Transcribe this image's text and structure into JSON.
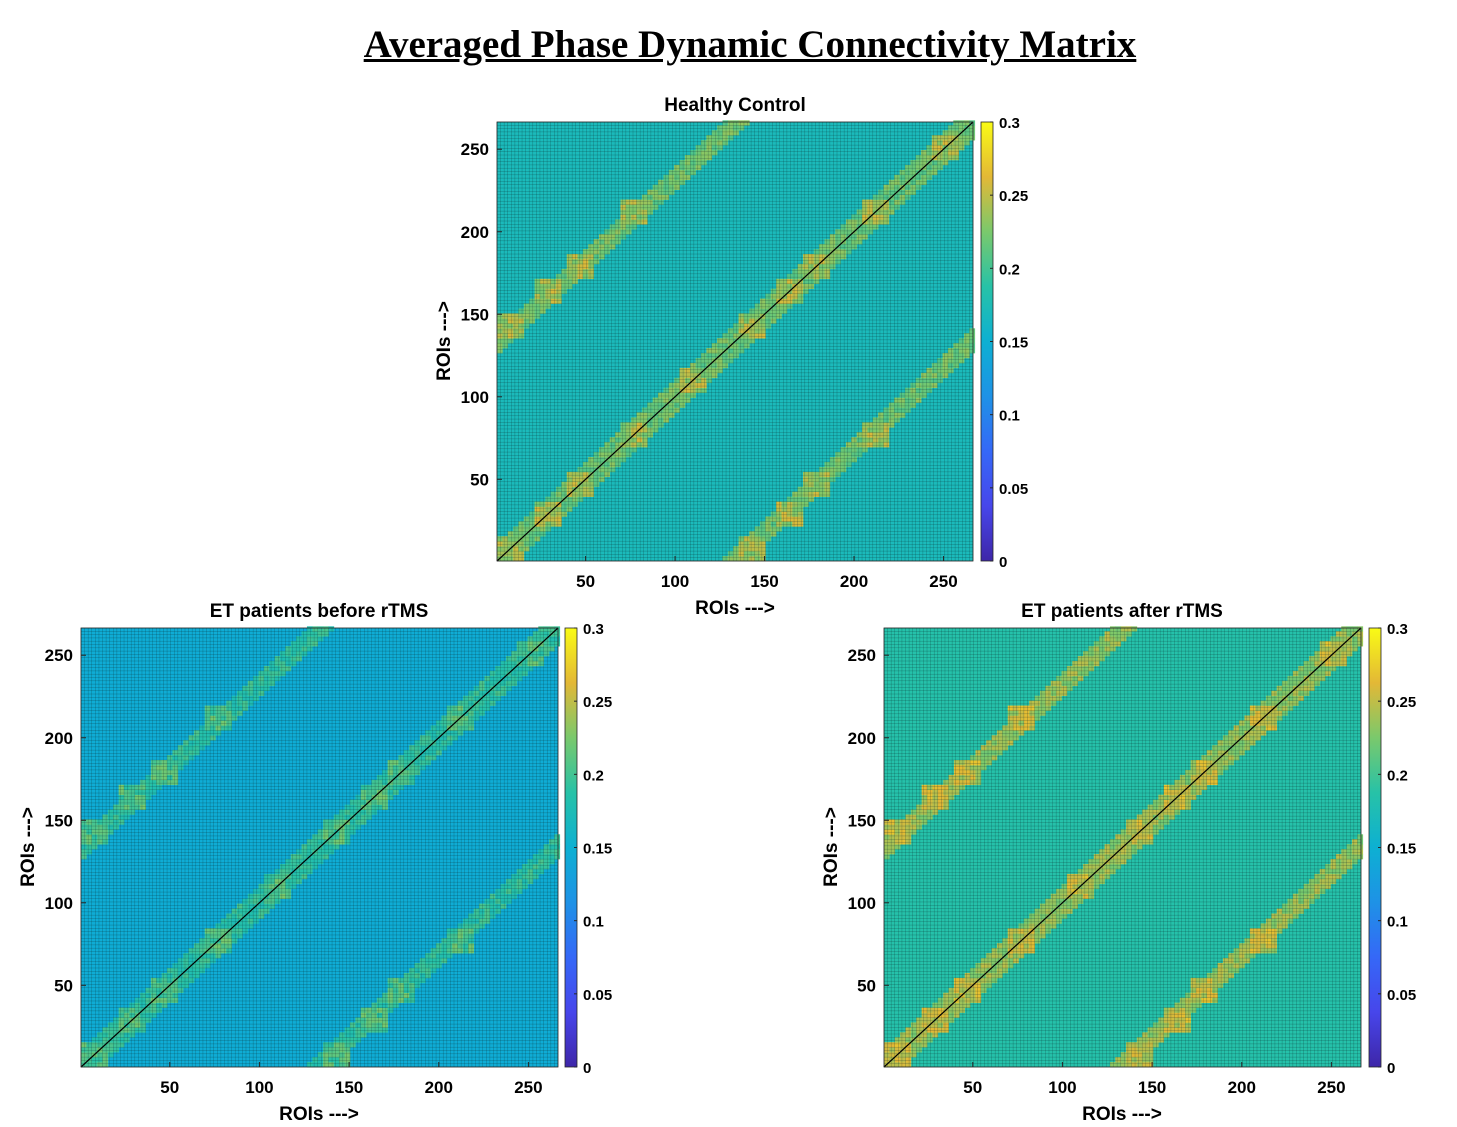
{
  "figure_title": "Averaged Phase Dynamic Connectivity Matrix",
  "colors": {
    "colormap": "parula",
    "diagonal": "#000000",
    "gridline": "#0a2a2a"
  },
  "chart_data": [
    {
      "type": "heatmap",
      "title": "Healthy Control",
      "xlabel": "ROIs --->",
      "ylabel": "ROIs --->",
      "n_rois": 266,
      "x_ticks": [
        50,
        100,
        150,
        200,
        250
      ],
      "y_ticks": [
        50,
        100,
        150,
        200,
        250
      ],
      "clim": [
        0,
        0.3
      ],
      "colorbar_ticks": [
        0,
        0.05,
        0.1,
        0.15,
        0.2,
        0.25,
        0.3
      ],
      "colorbar_tick_labels": [
        "0",
        "0.05",
        "0.1",
        "0.15",
        "0.2",
        "0.25",
        "0.3"
      ],
      "diagonal_value": 0,
      "background_value": 0.17,
      "block_value": 0.24,
      "diagonal_band_value": 0.22,
      "dark_band_value": 0.165
    },
    {
      "type": "heatmap",
      "title": "ET patients before rTMS",
      "xlabel": "ROIs --->",
      "ylabel": "ROIs --->",
      "n_rois": 266,
      "x_ticks": [
        50,
        100,
        150,
        200,
        250
      ],
      "y_ticks": [
        50,
        100,
        150,
        200,
        250
      ],
      "clim": [
        0,
        0.3
      ],
      "colorbar_ticks": [
        0,
        0.05,
        0.1,
        0.15,
        0.2,
        0.25,
        0.3
      ],
      "colorbar_tick_labels": [
        "0",
        "0.05",
        "0.1",
        "0.15",
        "0.2",
        "0.25",
        "0.3"
      ],
      "diagonal_value": 0,
      "background_value": 0.145,
      "block_value": 0.205,
      "diagonal_band_value": 0.19,
      "dark_band_value": 0.14
    },
    {
      "type": "heatmap",
      "title": "ET patients after rTMS",
      "xlabel": "ROIs --->",
      "ylabel": "ROIs --->",
      "n_rois": 266,
      "x_ticks": [
        50,
        100,
        150,
        200,
        250
      ],
      "y_ticks": [
        50,
        100,
        150,
        200,
        250
      ],
      "clim": [
        0,
        0.3
      ],
      "colorbar_ticks": [
        0,
        0.05,
        0.1,
        0.15,
        0.2,
        0.25,
        0.3
      ],
      "colorbar_tick_labels": [
        "0",
        "0.05",
        "0.1",
        "0.15",
        "0.2",
        "0.25",
        "0.3"
      ],
      "diagonal_value": 0,
      "background_value": 0.185,
      "block_value": 0.25,
      "diagonal_band_value": 0.235,
      "dark_band_value": 0.16
    }
  ]
}
